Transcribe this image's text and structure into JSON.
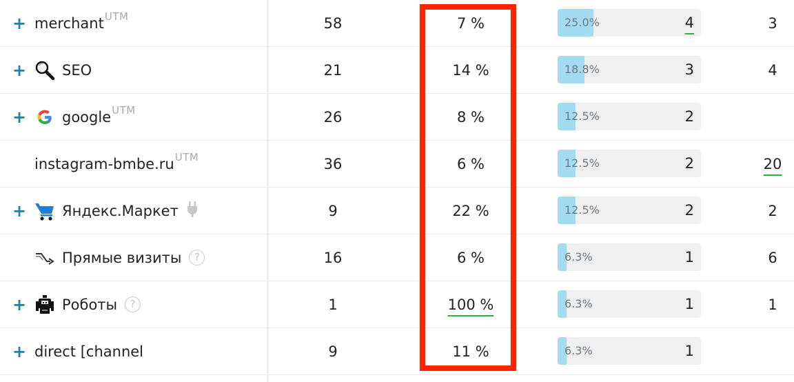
{
  "colors": {
    "accent_plus": "#1a80b6",
    "bar_fill": "#a2dbf2",
    "bar_track": "#f0f0f0",
    "highlight_box": "#ff2300",
    "underline": "#2bb33e"
  },
  "rows": [
    {
      "expandable": true,
      "icon": null,
      "name": "merchant",
      "utm": "UTM",
      "help": null,
      "plug": false,
      "visits": "58",
      "percent": "7 %",
      "percent_underlined": false,
      "bar_share": 0.25,
      "bar_label": "25.0%",
      "bar_count": "4",
      "bar_count_underlined": true,
      "last": "3",
      "last_underlined": false
    },
    {
      "expandable": true,
      "icon": "magnifier-icon",
      "name": "SEO",
      "utm": null,
      "help": null,
      "plug": false,
      "visits": "21",
      "percent": "14 %",
      "percent_underlined": false,
      "bar_share": 0.188,
      "bar_label": "18.8%",
      "bar_count": "3",
      "bar_count_underlined": false,
      "last": "4",
      "last_underlined": false
    },
    {
      "expandable": true,
      "icon": "google-icon",
      "name": "google",
      "utm": "UTM",
      "help": null,
      "plug": false,
      "visits": "26",
      "percent": "8 %",
      "percent_underlined": false,
      "bar_share": 0.125,
      "bar_label": "12.5%",
      "bar_count": "2",
      "bar_count_underlined": false,
      "last": "",
      "last_underlined": false
    },
    {
      "expandable": false,
      "icon": null,
      "name": "instagram-bmbe.ru",
      "utm": "UTM",
      "help": null,
      "plug": false,
      "visits": "36",
      "percent": "6 %",
      "percent_underlined": false,
      "bar_share": 0.125,
      "bar_label": "12.5%",
      "bar_count": "2",
      "bar_count_underlined": false,
      "last": "20",
      "last_underlined": true
    },
    {
      "expandable": true,
      "icon": "shopping-cart-icon",
      "name": "Яндекс.Маркет",
      "utm": null,
      "help": null,
      "plug": true,
      "visits": "9",
      "percent": "22 %",
      "percent_underlined": false,
      "bar_share": 0.125,
      "bar_label": "12.5%",
      "bar_count": "2",
      "bar_count_underlined": false,
      "last": "2",
      "last_underlined": false
    },
    {
      "expandable": false,
      "icon": "direct-arrow-icon",
      "name": "Прямые визиты",
      "utm": null,
      "help": "?",
      "plug": false,
      "visits": "16",
      "percent": "6 %",
      "percent_underlined": false,
      "bar_share": 0.063,
      "bar_label": "6.3%",
      "bar_count": "1",
      "bar_count_underlined": false,
      "last": "6",
      "last_underlined": false
    },
    {
      "expandable": true,
      "icon": "robot-icon",
      "name": "Роботы",
      "utm": null,
      "help": "?",
      "plug": false,
      "visits": "1",
      "percent": "100 %",
      "percent_underlined": true,
      "bar_share": 0.063,
      "bar_label": "6.3%",
      "bar_count": "1",
      "bar_count_underlined": false,
      "last": "1",
      "last_underlined": false
    },
    {
      "expandable": true,
      "icon": null,
      "name": "direct [channel",
      "utm": null,
      "help": null,
      "plug": false,
      "visits": "9",
      "percent": "11 %",
      "percent_underlined": false,
      "bar_share": 0.063,
      "bar_label": "6.3%",
      "bar_count": "1",
      "bar_count_underlined": false,
      "last": "",
      "last_underlined": false
    }
  ],
  "plus_glyph": "+"
}
